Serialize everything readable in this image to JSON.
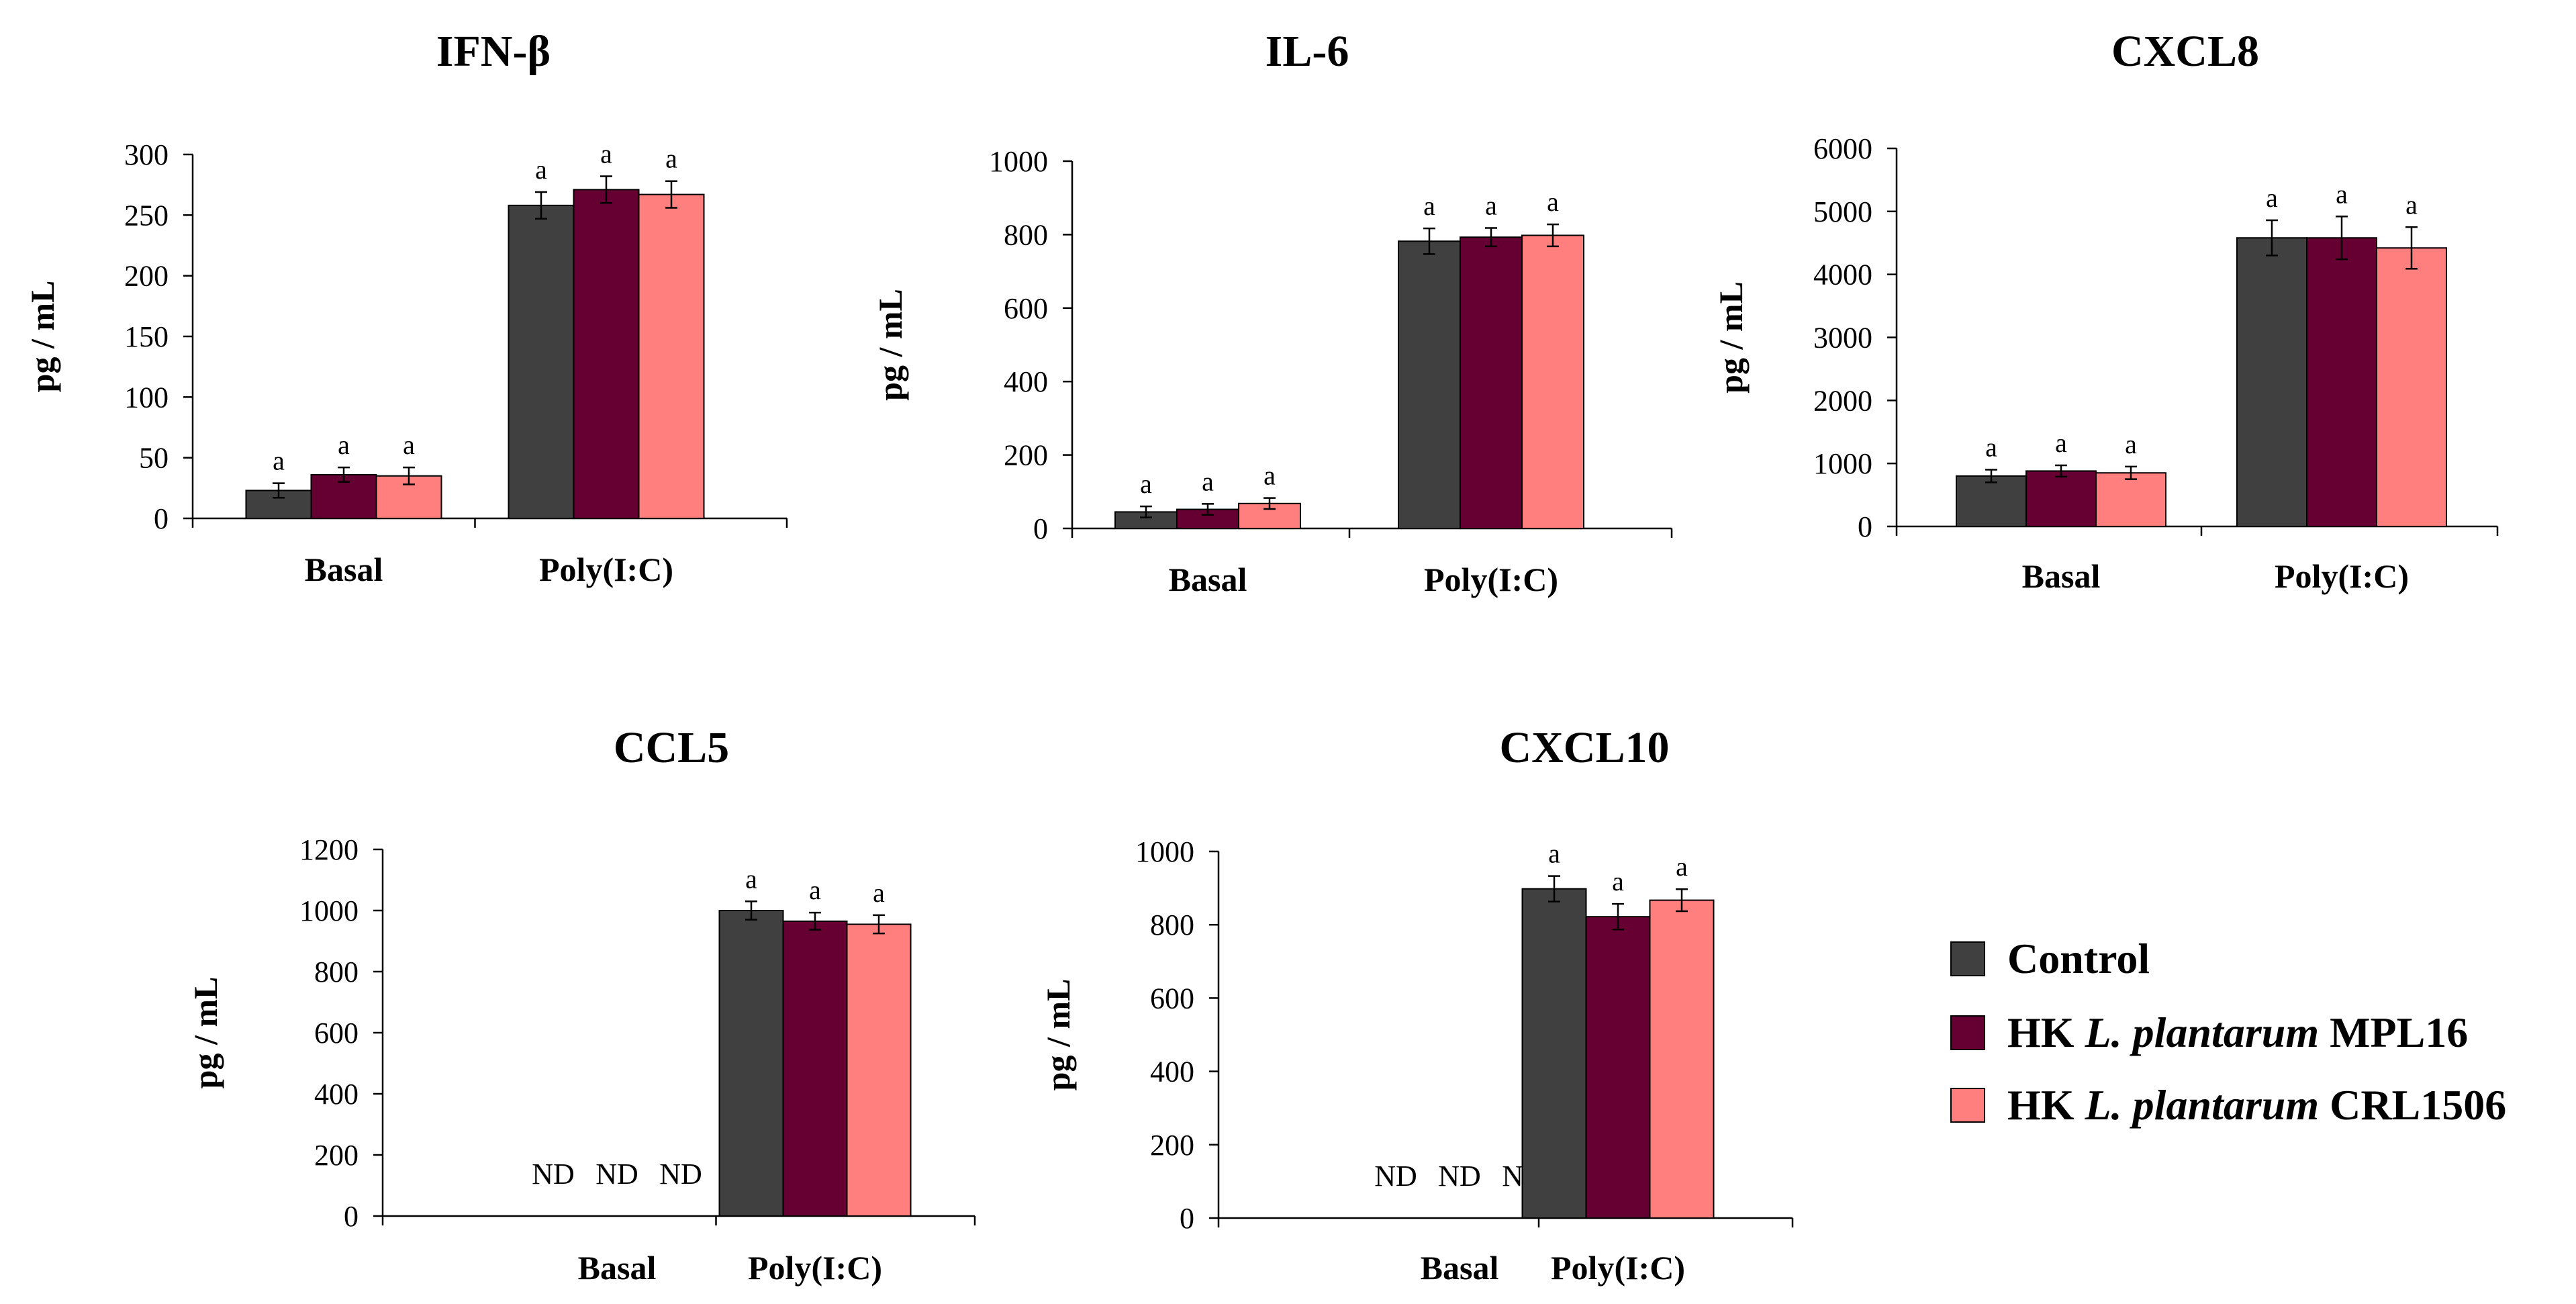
{
  "chart_data": [
    {
      "type": "bar",
      "title": "IFN-β",
      "ylabel": "pg / mL",
      "xlabel": "",
      "categories": [
        "Basal",
        "Poly(I:C)"
      ],
      "ylim": [
        0,
        300
      ],
      "yticks": [
        "0",
        "50",
        "100",
        "150",
        "200",
        "250",
        "300"
      ],
      "series": [
        {
          "name": "Control",
          "values": [
            23,
            258
          ],
          "errors": [
            6,
            11
          ],
          "labels": [
            "a",
            "a"
          ]
        },
        {
          "name": "HK L. plantarum MPL16",
          "values": [
            36,
            271
          ],
          "errors": [
            6,
            11
          ],
          "labels": [
            "a",
            "a"
          ]
        },
        {
          "name": "HK L. plantarum CRL1506",
          "values": [
            35,
            267
          ],
          "errors": [
            7,
            11
          ],
          "labels": [
            "a",
            "a"
          ]
        }
      ]
    },
    {
      "type": "bar",
      "title": "IL-6",
      "ylabel": "pg / mL",
      "xlabel": "",
      "categories": [
        "Basal",
        "Poly(I:C)"
      ],
      "ylim": [
        0,
        1000
      ],
      "yticks": [
        "0",
        "200",
        "400",
        "600",
        "800",
        "1000"
      ],
      "series": [
        {
          "name": "Control",
          "values": [
            45,
            782
          ],
          "errors": [
            15,
            35
          ],
          "labels": [
            "a",
            "a"
          ]
        },
        {
          "name": "HK L. plantarum MPL16",
          "values": [
            52,
            793
          ],
          "errors": [
            15,
            25
          ],
          "labels": [
            "a",
            "a"
          ]
        },
        {
          "name": "HK L. plantarum CRL1506",
          "values": [
            68,
            798
          ],
          "errors": [
            15,
            30
          ],
          "labels": [
            "a",
            "a"
          ]
        }
      ]
    },
    {
      "type": "bar",
      "title": "CXCL8",
      "ylabel": "pg / mL",
      "xlabel": "",
      "categories": [
        "Basal",
        "Poly(I:C)"
      ],
      "ylim": [
        0,
        6000
      ],
      "yticks": [
        "0",
        "1000",
        "2000",
        "3000",
        "4000",
        "5000",
        "6000"
      ],
      "series": [
        {
          "name": "Control",
          "values": [
            800,
            4580
          ],
          "errors": [
            100,
            280
          ],
          "labels": [
            "a",
            "a"
          ]
        },
        {
          "name": "HK L. plantarum MPL16",
          "values": [
            880,
            4580
          ],
          "errors": [
            90,
            340
          ],
          "labels": [
            "a",
            "a"
          ]
        },
        {
          "name": "HK L. plantarum CRL1506",
          "values": [
            850,
            4420
          ],
          "errors": [
            100,
            330
          ],
          "labels": [
            "a",
            "a"
          ]
        }
      ]
    },
    {
      "type": "bar",
      "title": "CCL5",
      "ylabel": "pg / mL",
      "xlabel": "",
      "categories": [
        "Basal",
        "Poly(I:C)"
      ],
      "ylim": [
        0,
        1200
      ],
      "yticks": [
        "0",
        "200",
        "400",
        "600",
        "800",
        "1000",
        "1200"
      ],
      "series": [
        {
          "name": "Control",
          "values": [
            null,
            1000
          ],
          "errors": [
            0,
            30
          ],
          "labels": [
            "ND",
            "a"
          ]
        },
        {
          "name": "HK L. plantarum MPL16",
          "values": [
            null,
            965
          ],
          "errors": [
            0,
            28
          ],
          "labels": [
            "ND",
            "a"
          ]
        },
        {
          "name": "HK L. plantarum CRL1506",
          "values": [
            null,
            955
          ],
          "errors": [
            0,
            30
          ],
          "labels": [
            "ND",
            "a"
          ]
        }
      ]
    },
    {
      "type": "bar",
      "title": "CXCL10",
      "ylabel": "pg / mL",
      "xlabel": "",
      "categories": [
        "Basal",
        "Poly(I:C)"
      ],
      "ylim": [
        0,
        1000
      ],
      "yticks": [
        "0",
        "200",
        "400",
        "600",
        "800",
        "1000"
      ],
      "series": [
        {
          "name": "Control",
          "values": [
            null,
            898
          ],
          "errors": [
            0,
            35
          ],
          "labels": [
            "ND",
            "a"
          ]
        },
        {
          "name": "HK L. plantarum MPL16",
          "values": [
            null,
            822
          ],
          "errors": [
            0,
            35
          ],
          "labels": [
            "ND",
            "a"
          ]
        },
        {
          "name": "HK L. plantarum CRL1506",
          "values": [
            null,
            867
          ],
          "errors": [
            0,
            30
          ],
          "labels": [
            "ND",
            "a"
          ]
        }
      ]
    }
  ],
  "legend": {
    "items": [
      {
        "prefix": "",
        "italic": "",
        "suffix": "Control",
        "color": "#404040"
      },
      {
        "prefix": "HK ",
        "italic": "L. plantarum",
        "suffix": " MPL16",
        "color": "#660033"
      },
      {
        "prefix": "HK ",
        "italic": "L. plantarum",
        "suffix": " CRL1506",
        "color": "#ff7f7f"
      }
    ]
  },
  "colors": {
    "control": "#404040",
    "mpl16": "#660033",
    "crl1506": "#ff7f7f"
  }
}
